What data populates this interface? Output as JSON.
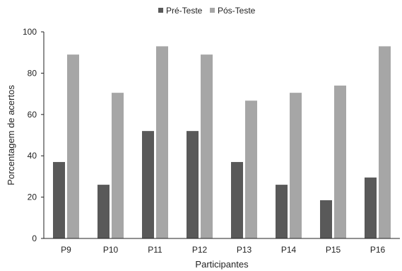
{
  "chart_data": {
    "type": "bar",
    "categories": [
      "P9",
      "P10",
      "P11",
      "P12",
      "P13",
      "P14",
      "P15",
      "P16"
    ],
    "series": [
      {
        "name": "Pré-Teste",
        "color": "#595959",
        "values": [
          37,
          26,
          52,
          52,
          37,
          26,
          18.5,
          29.5
        ]
      },
      {
        "name": "Pós-Teste",
        "color": "#a6a6a6",
        "values": [
          89,
          70.5,
          93,
          89,
          66.7,
          70.5,
          74,
          93
        ]
      }
    ],
    "title": "",
    "xlabel": "Participantes",
    "ylabel": "Porcentagem de acertos",
    "ylim": [
      0,
      100
    ],
    "yticks": [
      0,
      20,
      40,
      60,
      80,
      100
    ],
    "ytick_labels": [
      "0",
      "20",
      "40",
      "60",
      "80",
      "100"
    ],
    "grid": false,
    "legend_position": "top-center"
  }
}
